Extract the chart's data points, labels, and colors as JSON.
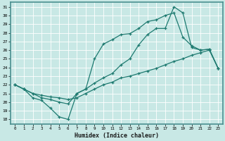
{
  "xlabel": "Humidex (Indice chaleur)",
  "xlim": [
    -0.5,
    23.5
  ],
  "ylim": [
    17.5,
    31.5
  ],
  "xticks": [
    0,
    1,
    2,
    3,
    4,
    5,
    6,
    7,
    8,
    9,
    10,
    11,
    12,
    13,
    14,
    15,
    16,
    17,
    18,
    19,
    20,
    21,
    22,
    23
  ],
  "yticks": [
    18,
    19,
    20,
    21,
    22,
    23,
    24,
    25,
    26,
    27,
    28,
    29,
    30,
    31
  ],
  "bg_color": "#c8e8e5",
  "border_color": "#4a9090",
  "line_color": "#1e7a70",
  "line1_x": [
    0,
    1,
    2,
    3,
    4,
    5,
    6,
    7,
    8,
    9,
    10,
    11,
    12,
    13,
    14,
    15,
    16,
    17,
    18,
    19,
    20,
    21,
    22,
    23
  ],
  "line1_y": [
    22.0,
    21.5,
    20.5,
    20.2,
    19.3,
    18.3,
    18.0,
    21.0,
    21.5,
    22.2,
    22.8,
    23.3,
    24.3,
    25.0,
    26.6,
    27.8,
    28.5,
    28.5,
    31.0,
    30.3,
    26.3,
    26.0,
    26.1,
    23.9
  ],
  "line2_x": [
    0,
    1,
    2,
    3,
    4,
    5,
    6,
    7,
    8,
    9,
    10,
    11,
    12,
    13,
    14,
    15,
    16,
    17,
    18,
    19,
    20,
    21,
    22,
    23
  ],
  "line2_y": [
    22.0,
    21.5,
    21.0,
    20.8,
    20.6,
    20.5,
    20.3,
    20.5,
    21.0,
    21.5,
    22.0,
    22.3,
    22.8,
    23.0,
    23.3,
    23.6,
    23.9,
    24.3,
    24.7,
    25.0,
    25.4,
    25.7,
    26.0,
    23.9
  ],
  "line3_x": [
    0,
    1,
    2,
    3,
    4,
    5,
    6,
    7,
    8,
    9,
    10,
    11,
    12,
    13,
    14,
    15,
    16,
    17,
    18,
    19,
    20,
    21,
    22,
    23
  ],
  "line3_y": [
    22.0,
    21.5,
    21.0,
    20.5,
    20.3,
    20.0,
    19.8,
    21.0,
    21.5,
    25.0,
    26.7,
    27.2,
    27.8,
    27.9,
    28.5,
    29.3,
    29.5,
    30.0,
    30.3,
    27.5,
    26.5,
    26.0,
    26.1,
    23.9
  ]
}
